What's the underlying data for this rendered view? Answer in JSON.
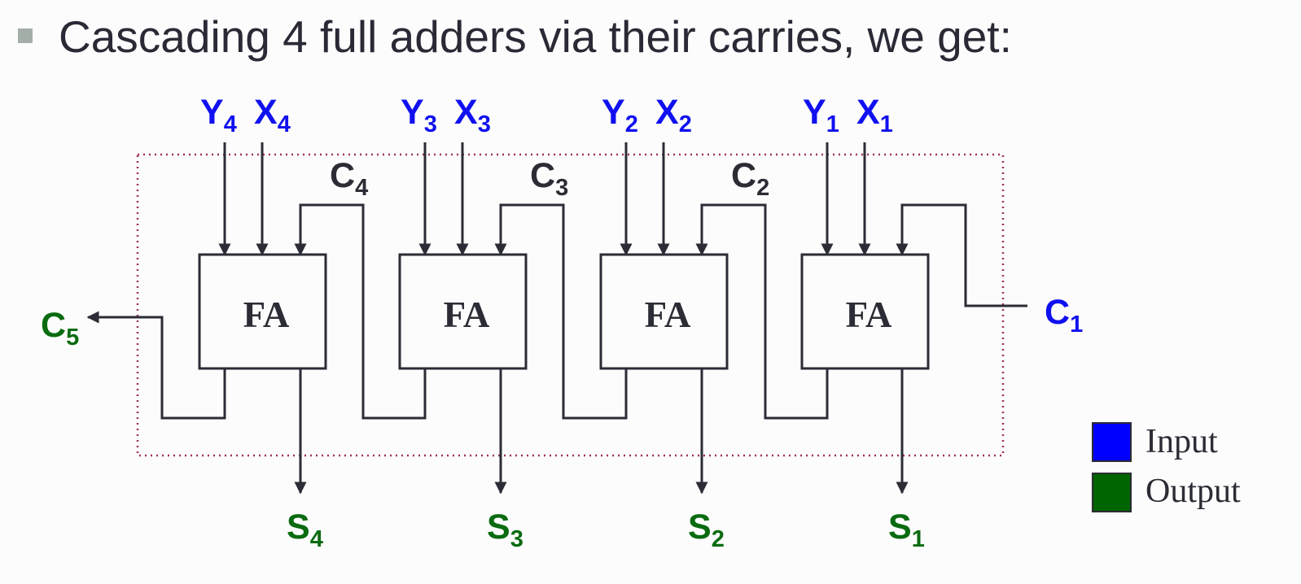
{
  "heading": {
    "bullet_icon": "square-bullet-icon",
    "text": "Cascading 4 full adders via their carries, we get:"
  },
  "adders": [
    {
      "label": "FA",
      "y": {
        "letter": "Y",
        "index": "4"
      },
      "x": {
        "letter": "X",
        "index": "4"
      },
      "sum": {
        "letter": "S",
        "index": "4"
      }
    },
    {
      "label": "FA",
      "y": {
        "letter": "Y",
        "index": "3"
      },
      "x": {
        "letter": "X",
        "index": "3"
      },
      "sum": {
        "letter": "S",
        "index": "3"
      }
    },
    {
      "label": "FA",
      "y": {
        "letter": "Y",
        "index": "2"
      },
      "x": {
        "letter": "X",
        "index": "2"
      },
      "sum": {
        "letter": "S",
        "index": "2"
      }
    },
    {
      "label": "FA",
      "y": {
        "letter": "Y",
        "index": "1"
      },
      "x": {
        "letter": "X",
        "index": "1"
      },
      "sum": {
        "letter": "S",
        "index": "1"
      }
    }
  ],
  "carries": [
    {
      "letter": "C",
      "index": "4"
    },
    {
      "letter": "C",
      "index": "3"
    },
    {
      "letter": "C",
      "index": "2"
    }
  ],
  "carry_in": {
    "letter": "C",
    "index": "1"
  },
  "carry_out": {
    "letter": "C",
    "index": "5"
  },
  "legend": [
    {
      "label": "Input",
      "color": "#0000ff"
    },
    {
      "label": "Output",
      "color": "#006400"
    }
  ],
  "colors": {
    "input": "#1010f0",
    "output": "#0a6b10",
    "wire": "#2c2c36",
    "boundary": "#a0305a"
  }
}
